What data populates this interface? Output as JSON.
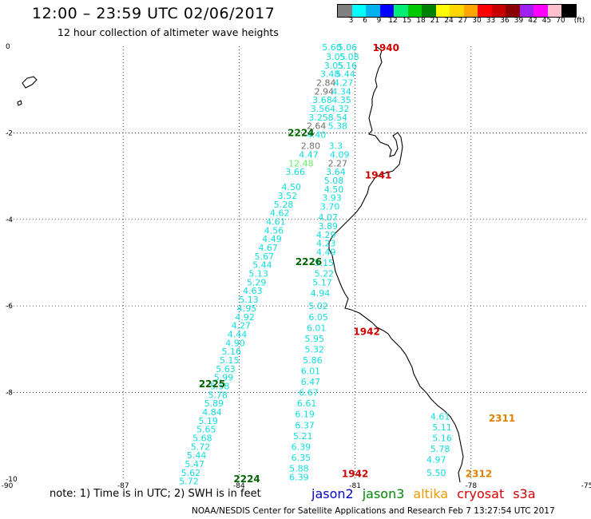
{
  "header": {
    "title": "12:00 – 23:59 UTC 02/06/2017",
    "subtitle": "12 hour collection of altimeter wave heights"
  },
  "colorbar": {
    "unit": "(ft)",
    "labels": [
      "3",
      "6",
      "9",
      "12",
      "15",
      "18",
      "21",
      "24",
      "27",
      "30",
      "33",
      "36",
      "39",
      "42",
      "45",
      "70"
    ],
    "colors": [
      "#808080",
      "#00ffff",
      "#00b2ee",
      "#0000ff",
      "#00ee76",
      "#00c800",
      "#008000",
      "#ffff00",
      "#ffd700",
      "#ffa500",
      "#ff0000",
      "#c80000",
      "#8b0000",
      "#a020f0",
      "#ff00ff",
      "#ffc0cb",
      "#000000"
    ]
  },
  "axes": {
    "x_ticks": [
      "-90",
      "-87",
      "-84",
      "-81",
      "-78",
      "-75"
    ],
    "y_ticks": [
      "0",
      "-2",
      "-4",
      "-6",
      "-8",
      "-10"
    ]
  },
  "chart_data": {
    "type": "scatter",
    "xlim": [
      -90,
      -75
    ],
    "ylim": [
      -10,
      0
    ],
    "grid": true,
    "time_labels": [
      {
        "text": "1940",
        "lon": -80.2,
        "lat": -0.04,
        "color": "#cc0000"
      },
      {
        "text": "2224",
        "lon": -82.4,
        "lat": -2.0,
        "color": "#006400"
      },
      {
        "text": "1941",
        "lon": -80.4,
        "lat": -2.98,
        "color": "#cc0000"
      },
      {
        "text": "2226",
        "lon": -82.2,
        "lat": -4.98,
        "color": "#006400"
      },
      {
        "text": "1942",
        "lon": -80.7,
        "lat": -6.6,
        "color": "#cc0000"
      },
      {
        "text": "2225",
        "lon": -84.7,
        "lat": -7.8,
        "color": "#006400"
      },
      {
        "text": "2311",
        "lon": -77.2,
        "lat": -8.6,
        "color": "#e08000"
      },
      {
        "text": "2312",
        "lon": -77.8,
        "lat": -9.88,
        "color": "#e08000"
      },
      {
        "text": "1942",
        "lon": -81.0,
        "lat": -9.88,
        "color": "#cc0000"
      },
      {
        "text": "2224",
        "lon": -83.8,
        "lat": -10.0,
        "color": "#006400"
      }
    ],
    "tracks": [
      {
        "values": [
          [
            -81.6,
            -0.02,
            "5.60"
          ],
          [
            -81.5,
            -0.24,
            "3.05"
          ],
          [
            -81.55,
            -0.44,
            "3.05"
          ],
          [
            -81.65,
            -0.64,
            "3.48"
          ],
          [
            -81.75,
            -0.84,
            "2.84"
          ],
          [
            -81.8,
            -1.04,
            "2.94"
          ],
          [
            -81.85,
            -1.24,
            "3.68"
          ],
          [
            -81.9,
            -1.44,
            "3.56"
          ],
          [
            -81.95,
            -1.64,
            "3.25"
          ],
          [
            -82.0,
            -1.84,
            "2.64"
          ],
          [
            -82.0,
            -2.04,
            "4.40"
          ],
          [
            -82.15,
            -2.3,
            "2.80"
          ],
          [
            -82.2,
            -2.5,
            "4.47"
          ],
          [
            -82.4,
            -2.7,
            "12.48"
          ],
          [
            -82.55,
            -2.9,
            "3.66"
          ],
          [
            -82.65,
            -3.25,
            "4.50"
          ],
          [
            -82.75,
            -3.45,
            "3.52"
          ],
          [
            -82.85,
            -3.65,
            "5.28"
          ],
          [
            -82.95,
            -3.85,
            "4.62"
          ],
          [
            -83.05,
            -4.05,
            "4.61"
          ],
          [
            -83.1,
            -4.25,
            "4.56"
          ],
          [
            -83.15,
            -4.45,
            "4.49"
          ],
          [
            -83.25,
            -4.65,
            "4.67"
          ],
          [
            -83.35,
            -4.85,
            "5.67"
          ],
          [
            -83.4,
            -5.05,
            "5.44"
          ],
          [
            -83.5,
            -5.25,
            "5.13"
          ],
          [
            -83.55,
            -5.45,
            "5.29"
          ],
          [
            -83.65,
            -5.65,
            "4.63"
          ],
          [
            -83.75,
            -5.85,
            "5.13"
          ],
          [
            -83.8,
            -6.05,
            "4.95"
          ],
          [
            -83.85,
            -6.25,
            "4.92"
          ],
          [
            -83.95,
            -6.45,
            "4.27"
          ],
          [
            -84.05,
            -6.65,
            "4.44"
          ],
          [
            -84.1,
            -6.85,
            "4.90"
          ],
          [
            -84.2,
            -7.05,
            "5.16"
          ],
          [
            -84.25,
            -7.25,
            "5.15"
          ],
          [
            -84.35,
            -7.45,
            "5.63"
          ],
          [
            -84.4,
            -7.65,
            "5.99"
          ],
          [
            -84.5,
            -7.85,
            "5.58"
          ],
          [
            -84.55,
            -8.05,
            "5.78"
          ],
          [
            -84.65,
            -8.25,
            "5.89"
          ],
          [
            -84.7,
            -8.45,
            "4.84"
          ],
          [
            -84.8,
            -8.65,
            "5.19"
          ],
          [
            -84.85,
            -8.85,
            "5.65"
          ],
          [
            -84.95,
            -9.05,
            "5.68"
          ],
          [
            -85.0,
            -9.25,
            "5.72"
          ],
          [
            -85.1,
            -9.45,
            "5.44"
          ],
          [
            -85.15,
            -9.65,
            "5.47"
          ],
          [
            -85.25,
            -9.85,
            "5.62"
          ],
          [
            -85.3,
            -10.05,
            "5.72"
          ]
        ]
      },
      {
        "values": [
          [
            -81.2,
            -0.02,
            "5.06"
          ],
          [
            -81.15,
            -0.24,
            "5.08"
          ],
          [
            -81.2,
            -0.44,
            "5.16"
          ],
          [
            -81.25,
            -0.64,
            "5.44"
          ],
          [
            -81.3,
            -0.84,
            "4.27"
          ],
          [
            -81.35,
            -1.04,
            "4.34"
          ],
          [
            -81.35,
            -1.24,
            "4.35"
          ],
          [
            -81.4,
            -1.44,
            "4.32"
          ],
          [
            -81.45,
            -1.64,
            "8.54"
          ],
          [
            -81.45,
            -1.84,
            "5.38"
          ],
          [
            -81.5,
            -2.3,
            "3.3"
          ],
          [
            -81.4,
            -2.5,
            "4.09"
          ],
          [
            -81.45,
            -2.7,
            "2.27"
          ],
          [
            -81.5,
            -2.9,
            "3.64"
          ],
          [
            -81.55,
            -3.1,
            "5.08"
          ],
          [
            -81.55,
            -3.3,
            "4.50"
          ],
          [
            -81.6,
            -3.5,
            "3.93"
          ],
          [
            -81.65,
            -3.7,
            "3.70"
          ],
          [
            -81.7,
            -3.95,
            "4.07"
          ],
          [
            -81.7,
            -4.15,
            "3.89"
          ],
          [
            -81.75,
            -4.35,
            "4.29"
          ],
          [
            -81.75,
            -4.55,
            "4.23"
          ],
          [
            -81.75,
            -4.75,
            "4.49"
          ],
          [
            -81.8,
            -5.0,
            "5.15"
          ],
          [
            -81.8,
            -5.25,
            "5.22"
          ],
          [
            -81.85,
            -5.45,
            "5.17"
          ],
          [
            -81.9,
            -5.7,
            "4.94"
          ],
          [
            -81.95,
            -6.0,
            "5.02"
          ],
          [
            -81.95,
            -6.25,
            "6.05"
          ],
          [
            -82.0,
            -6.5,
            "6.01"
          ],
          [
            -82.05,
            -6.75,
            "5.95"
          ],
          [
            -82.05,
            -7.0,
            "5.32"
          ],
          [
            -82.1,
            -7.25,
            "5.86"
          ],
          [
            -82.15,
            -7.5,
            "6.01"
          ],
          [
            -82.15,
            -7.75,
            "6.47"
          ],
          [
            -82.2,
            -8.0,
            "6.67"
          ],
          [
            -82.25,
            -8.25,
            "6.61"
          ],
          [
            -82.3,
            -8.5,
            "6.19"
          ],
          [
            -82.3,
            -8.75,
            "6.37"
          ],
          [
            -82.35,
            -9.0,
            "5.21"
          ],
          [
            -82.4,
            -9.25,
            "6.39"
          ],
          [
            -82.4,
            -9.5,
            "6.35"
          ],
          [
            -82.45,
            -9.75,
            "5.88"
          ],
          [
            -82.45,
            -9.95,
            "6.39"
          ]
        ]
      },
      {
        "values": [
          [
            -78.8,
            -8.55,
            "4.61"
          ],
          [
            -78.75,
            -8.8,
            "5.11"
          ],
          [
            -78.75,
            -9.05,
            "5.16"
          ],
          [
            -78.8,
            -9.3,
            "5.78"
          ],
          [
            -78.9,
            -9.55,
            "4.97"
          ],
          [
            -78.9,
            -9.85,
            "5.50"
          ]
        ]
      }
    ]
  },
  "footer": {
    "note": "note:  1) Time is in UTC;  2) SWH is in feet",
    "credit": "NOAA/NESDIS Center for Satellite Applications and Research    Feb  7 13:27:54 UTC 2017"
  },
  "legend": {
    "items": [
      {
        "label": "jason2",
        "color": "#0000cc"
      },
      {
        "label": "jason3",
        "color": "#008800"
      },
      {
        "label": "altika",
        "color": "#ee9900"
      },
      {
        "label": "cryosat",
        "color": "#dd0000"
      },
      {
        "label": "s3a",
        "color": "#cc0000"
      }
    ]
  }
}
